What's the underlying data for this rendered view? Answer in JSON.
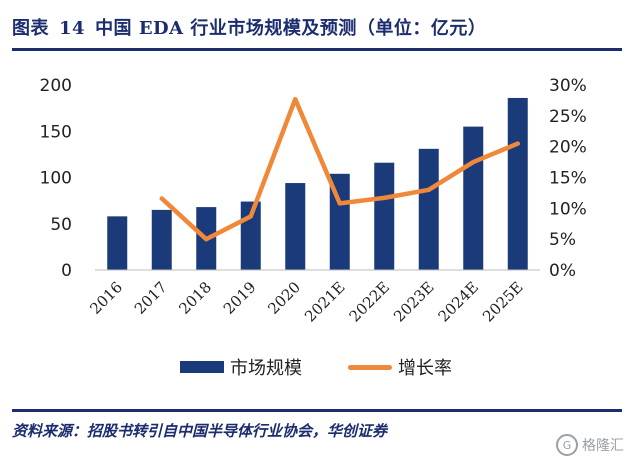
{
  "title": {
    "prefix": "图表",
    "number": "14",
    "text": "中国 EDA 行业市场规模及预测（单位：亿元）"
  },
  "chart_data": {
    "type": "bar",
    "categories": [
      "2016",
      "2017",
      "2018",
      "2019",
      "2020",
      "2021E",
      "2022E",
      "2023E",
      "2024E",
      "2025E"
    ],
    "series": [
      {
        "name": "市场规模",
        "type": "bar",
        "axis": "left",
        "values": [
          58,
          65,
          68,
          74,
          94,
          104,
          116,
          131,
          155,
          186
        ]
      },
      {
        "name": "增长率",
        "type": "line",
        "axis": "right",
        "values": [
          null,
          11.6,
          5.0,
          8.7,
          27.7,
          10.8,
          11.7,
          13.0,
          17.5,
          20.5
        ]
      }
    ],
    "y_left": {
      "ticks": [
        "0",
        "50",
        "100",
        "150",
        "200"
      ],
      "min": 0,
      "max": 200
    },
    "y_right": {
      "ticks": [
        "0%",
        "5%",
        "10%",
        "15%",
        "20%",
        "25%",
        "30%"
      ],
      "min": 0,
      "max": 30
    },
    "legend_position": "bottom",
    "grid": false,
    "colors": {
      "bar": "#1b3a7a",
      "line": "#f0883a"
    }
  },
  "legend": {
    "bar_label": "市场规模",
    "line_label": "增长率"
  },
  "source": "资料来源：招股书转引自中国半导体行业协会，华创证券",
  "watermark": {
    "logo": "G",
    "text": "格隆汇"
  }
}
